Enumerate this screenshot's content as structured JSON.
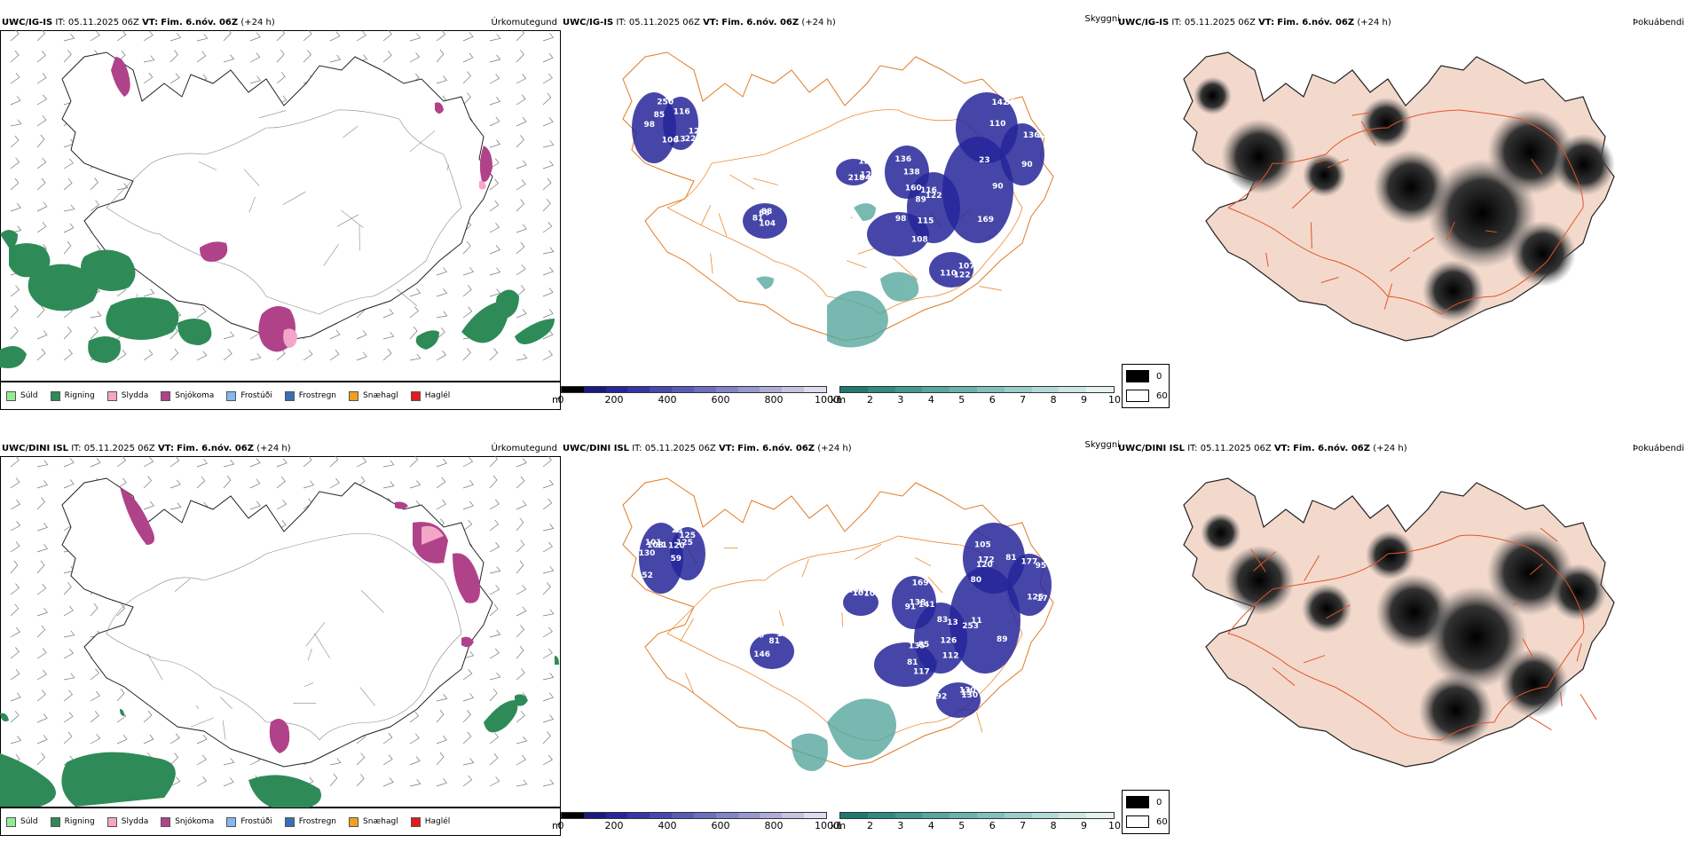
{
  "rows": [
    {
      "model": "UWC/IG-IS",
      "it_label": "IT:",
      "it_value": "05.11.2025 06Z",
      "vt_label": "VT:",
      "vt_value": "Fim. 6.nóv. 06Z",
      "lead": "(+24 h)",
      "precip_title": "Úrkomutegund",
      "vis_title": "Skyggni",
      "fog_title": "Þokuábendi"
    },
    {
      "model": "UWC/DINI ISL",
      "it_label": "IT:",
      "it_value": "05.11.2025 06Z",
      "vt_label": "VT:",
      "vt_value": "Fim. 6.nóv. 06Z",
      "lead": "(+24 h)",
      "precip_title": "Úrkomutegund",
      "vis_title": "Skyggni",
      "fog_title": "Þokuábendi"
    }
  ],
  "precip_legend": [
    {
      "label": "Súld",
      "color": "#90ee90"
    },
    {
      "label": "Rigning",
      "color": "#2e8b57"
    },
    {
      "label": "Slydda",
      "color": "#f4a6c8"
    },
    {
      "label": "Snjókoma",
      "color": "#b0428a"
    },
    {
      "label": "Frostúði",
      "color": "#87b6f0"
    },
    {
      "label": "Frostregn",
      "color": "#3a6fb5"
    },
    {
      "label": "Snæhagl",
      "color": "#f0a020"
    },
    {
      "label": "Haglél",
      "color": "#e41a1c"
    }
  ],
  "ceiling_bar": {
    "unit": "m",
    "ticks": [
      "0",
      "200",
      "400",
      "600",
      "800",
      "1000"
    ],
    "colors": [
      "#000000",
      "#1a1a80",
      "#26269a",
      "#3535a8",
      "#4848b0",
      "#5a5ab8",
      "#6e6ec0",
      "#8383c8",
      "#9898d0",
      "#adadd8",
      "#c4c4e2",
      "#dcdcee"
    ]
  },
  "vis_bar": {
    "unit": "km",
    "ticks": [
      "1",
      "2",
      "3",
      "4",
      "5",
      "6",
      "7",
      "8",
      "9",
      "10"
    ],
    "colors": [
      "#1e7a70",
      "#2f8a80",
      "#42998f",
      "#56a79e",
      "#6bb4ac",
      "#82c1ba",
      "#9acec8",
      "#b3dad6",
      "#cde6e3",
      "#e6f2f1"
    ]
  },
  "fog_legend": [
    {
      "label": "0",
      "color": "#000000"
    },
    {
      "label": "60",
      "color": "#ffffff"
    }
  ],
  "ceiling_labels_top": [
    "98",
    "116",
    "121",
    "81",
    "115",
    "122",
    "90",
    "110",
    "136",
    "122",
    "138",
    "106",
    "126",
    "120",
    "104",
    "108",
    "89",
    "23",
    "86",
    "90",
    "107",
    "160",
    "85",
    "13",
    "94",
    "88",
    "98",
    "116",
    "169",
    "142",
    "126",
    "110",
    "136",
    "250",
    "224",
    "218",
    "66"
  ],
  "ceiling_labels_bottom": [
    "101",
    "120",
    "77",
    "81",
    "135",
    "13",
    "11",
    "120",
    "17",
    "130",
    "141",
    "108",
    "23",
    "106",
    "146",
    "117",
    "112",
    "89",
    "105",
    "125",
    "130",
    "138",
    "130",
    "125",
    "109",
    "79",
    "81",
    "83",
    "80",
    "172",
    "95",
    "92",
    "91",
    "11",
    "125",
    "107",
    "157",
    "85",
    "126",
    "253",
    "81",
    "177",
    "15",
    "169",
    "52",
    "59",
    "59"
  ]
}
